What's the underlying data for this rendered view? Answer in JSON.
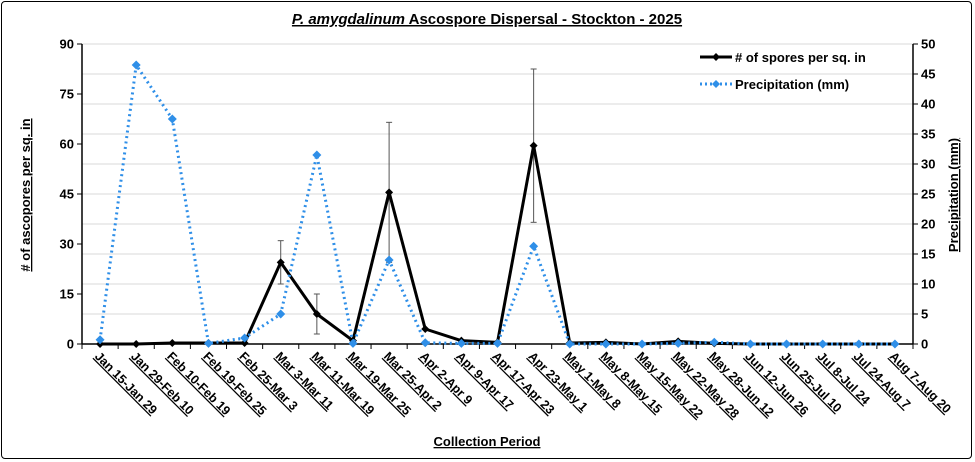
{
  "chart_data": {
    "type": "line",
    "title_italic": "P. amygdalinum",
    "title_rest": " Ascospore Dispersal - Stockton - 2025",
    "xlabel": "Collection Period",
    "ylabel": "# of ascopores per sq. in",
    "y2label": "Precipitation (mm)",
    "ylim": [
      0,
      90
    ],
    "yticks": [
      0,
      15,
      30,
      45,
      60,
      75,
      90
    ],
    "y2lim": [
      0,
      50
    ],
    "y2ticks": [
      0,
      5,
      10,
      15,
      20,
      25,
      30,
      35,
      40,
      45,
      50
    ],
    "grid": true,
    "legend_position": "top-right",
    "categories": [
      "Jan 15-Jan 29",
      "Jan 29-Feb 10",
      "Feb 10-Feb 19",
      "Feb 19-Feb 25",
      "Feb 25-Mar 3",
      "Mar 3-Mar 11",
      "Mar 11-Mar 19",
      "Mar 19-Mar 25",
      "Mar 25-Apr 2",
      "Apr 2-Apr 9",
      "Apr 9-Apr 17",
      "Apr 17-Apr 23",
      "Apr 23-May 1",
      "May 1-May 8",
      "May 8-May 15",
      "May 15-May 22",
      "May 22-May 28",
      "May 28-Jun 12",
      "Jun 12-Jun 26",
      "Jun 25-Jul 10",
      "Jul 8-Jul 24",
      "Jul 24-Aug 7",
      "Aug 7-Aug 20"
    ],
    "series": [
      {
        "name": "# of spores per sq. in",
        "axis": "left",
        "color": "#000000",
        "style": "solid",
        "values": [
          0,
          0,
          0.3,
          0.3,
          0.3,
          24.5,
          9,
          1,
          45.5,
          4.5,
          1,
          0.5,
          59.5,
          0.3,
          0.5,
          0,
          0.8,
          0.2,
          0,
          0,
          0,
          0,
          0
        ],
        "error": [
          null,
          null,
          null,
          null,
          null,
          6.5,
          6,
          null,
          21,
          null,
          null,
          null,
          23,
          null,
          null,
          null,
          null,
          null,
          null,
          null,
          null,
          null,
          null
        ]
      },
      {
        "name": "Precipitation (mm)",
        "axis": "right",
        "color": "#2f8fe8",
        "style": "dotted",
        "values": [
          0.7,
          46.5,
          37.5,
          0.1,
          1,
          5,
          31.5,
          0.1,
          14,
          0.2,
          0.1,
          0.1,
          16.3,
          0,
          0,
          0,
          0.1,
          0.3,
          0,
          0,
          0,
          0,
          0
        ]
      }
    ]
  }
}
